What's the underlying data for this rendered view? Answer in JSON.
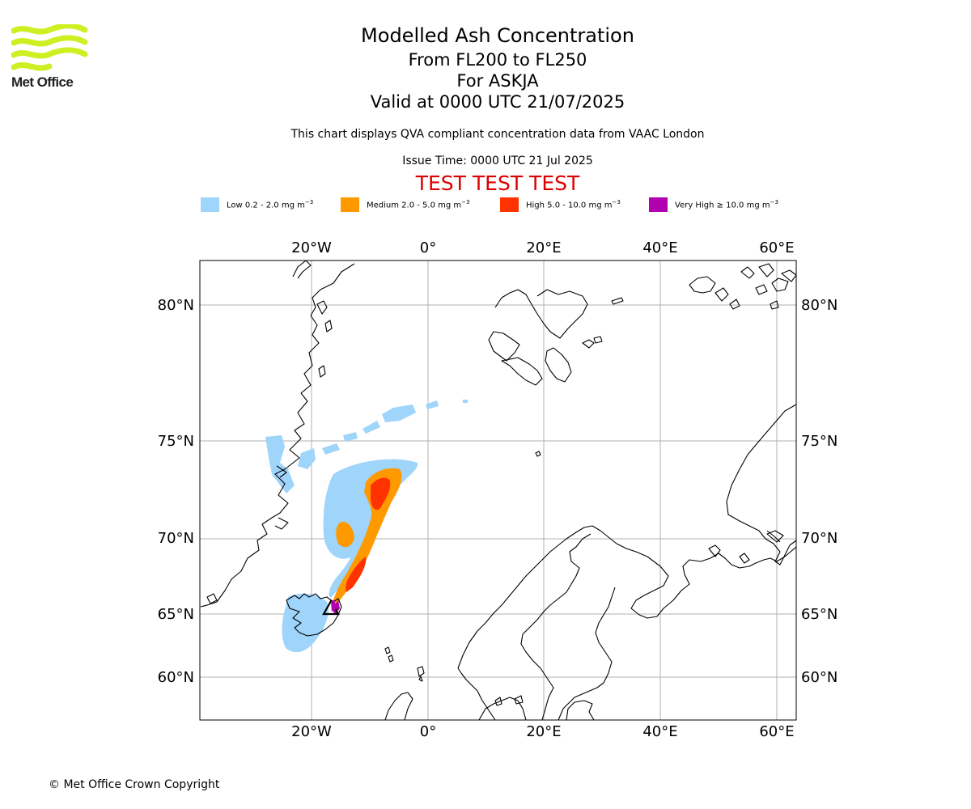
{
  "branding": {
    "logo_text": "Met Office",
    "logo_color": "#ccf022"
  },
  "titles": {
    "main": "Modelled Ash Concentration",
    "levels": "From FL200 to FL250",
    "volcano": "For ASKJA",
    "valid": "Valid at 0000 UTC 21/07/2025"
  },
  "subtitle": "This chart displays QVA compliant concentration data from VAAC London",
  "issue_time": "Issue Time: 0000 UTC 21 Jul 2025",
  "test_banner": "TEST TEST TEST",
  "legend": {
    "low": {
      "label": "Low 0.2 - 2.0 mg m",
      "color": "#9fd4fb"
    },
    "medium": {
      "label": "Medium 2.0 - 5.0 mg m",
      "color": "#ff9900"
    },
    "high": {
      "label": "High 5.0 - 10.0 mg m",
      "color": "#ff3300"
    },
    "very_high": {
      "label": "Very High  ≥  10.0 mg m",
      "color": "#b000b0"
    },
    "unit_exponent": "−3"
  },
  "axes": {
    "lon_ticks": [
      "20°W",
      "0°",
      "20°E",
      "40°E",
      "60°E"
    ],
    "lat_ticks": [
      "80°N",
      "75°N",
      "70°N",
      "65°N",
      "60°N"
    ]
  },
  "copyright": "© Met Office Crown Copyright"
}
